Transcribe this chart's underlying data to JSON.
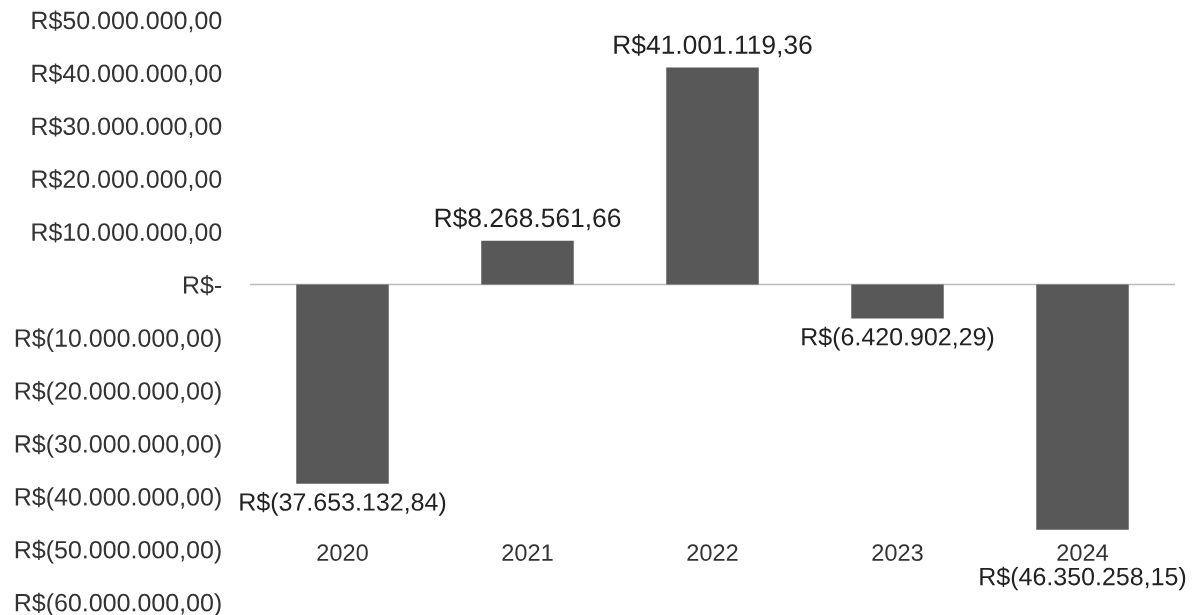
{
  "chart_data": {
    "type": "bar",
    "categories": [
      "2020",
      "2021",
      "2022",
      "2023",
      "2024"
    ],
    "values": [
      -37653132.84,
      8268561.66,
      41001119.36,
      -6420902.29,
      -46350258.15
    ],
    "value_labels": [
      "R$(37.653.132,84)",
      "R$8.268.561,66",
      "R$41.001.119,36",
      "R$(6.420.902,29)",
      "R$(46.350.258,15)"
    ],
    "color": "#585858",
    "ylim": [
      -60000000,
      50000000
    ],
    "yticks": [
      {
        "value": 50000000,
        "label": "R$50.000.000,00"
      },
      {
        "value": 40000000,
        "label": "R$40.000.000,00"
      },
      {
        "value": 30000000,
        "label": "R$30.000.000,00"
      },
      {
        "value": 20000000,
        "label": "R$20.000.000,00"
      },
      {
        "value": 10000000,
        "label": "R$10.000.000,00"
      },
      {
        "value": 0,
        "label": "R$-"
      },
      {
        "value": -10000000,
        "label": "R$(10.000.000,00)"
      },
      {
        "value": -20000000,
        "label": "R$(20.000.000,00)"
      },
      {
        "value": -30000000,
        "label": "R$(30.000.000,00)"
      },
      {
        "value": -40000000,
        "label": "R$(40.000.000,00)"
      },
      {
        "value": -50000000,
        "label": "R$(50.000.000,00)"
      },
      {
        "value": -60000000,
        "label": "R$(60.000.000,00)"
      }
    ],
    "ref_lines": [
      {
        "axis": "y",
        "value": 0,
        "color": "#bbbbbb"
      }
    ],
    "grid": false,
    "legend": false
  }
}
